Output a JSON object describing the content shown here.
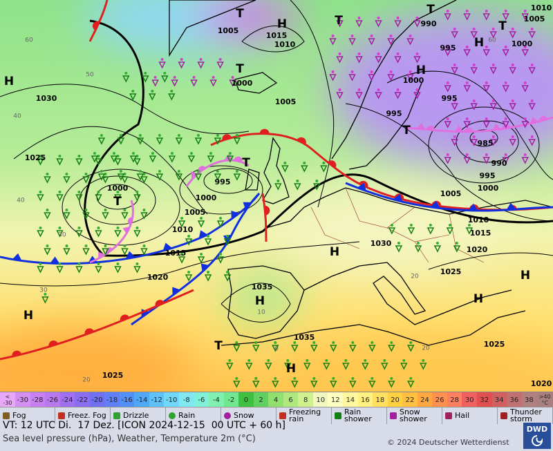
{
  "map": {
    "isobar_labels": [
      1005,
      1015,
      1010,
      990,
      1005,
      1010,
      1000,
      995,
      1000,
      1005,
      995,
      1000,
      995,
      985,
      990,
      995,
      1000,
      1030,
      1025,
      1000,
      995,
      1000,
      1005,
      1010,
      1015,
      1020,
      1030,
      1005,
      1010,
      1015,
      1020,
      1025,
      1035,
      1035,
      1025,
      1025,
      1020
    ],
    "pressure_centers": [
      "T",
      "H",
      "T",
      "T",
      "T",
      "H",
      "H",
      "T",
      "H",
      "T",
      "T",
      "T",
      "H",
      "H",
      "H",
      "H",
      "H",
      "T",
      "H"
    ],
    "grid_labels": [
      "60",
      "50",
      "40",
      "30",
      "20",
      "60",
      "0",
      "10",
      "20",
      "40",
      "30",
      "20"
    ]
  },
  "colorbar": {
    "low_label": "< -30",
    "high_label": ">40",
    "unit": "°C",
    "low_color": "#e8a8f8",
    "high_color": "#a88080",
    "steps": [
      -30,
      -28,
      -26,
      -24,
      -22,
      -20,
      -18,
      -16,
      -14,
      -12,
      -10,
      -8,
      -6,
      -4,
      -2,
      0,
      2,
      4,
      6,
      8,
      10,
      12,
      14,
      16,
      18,
      20,
      22,
      24,
      26,
      28,
      30,
      32,
      34,
      36,
      38
    ],
    "colors": [
      "#d490f0",
      "#c880f0",
      "#b878f0",
      "#a070f0",
      "#8c6cf0",
      "#7070f0",
      "#6080f8",
      "#5090f8",
      "#50a8f8",
      "#60c0f8",
      "#70d8f8",
      "#80e8f0",
      "#80f0d8",
      "#80f0b0",
      "#70e890",
      "#40c040",
      "#60d060",
      "#90e070",
      "#b0e880",
      "#d0f090",
      "#f0f8c0",
      "#ffffc0",
      "#fff8a0",
      "#fff080",
      "#ffe060",
      "#ffd040",
      "#ffc040",
      "#ffa840",
      "#ff9050",
      "#ff8060",
      "#f06060",
      "#e05050",
      "#d06060",
      "#c07070",
      "#b08080"
    ]
  },
  "legend": [
    "Fog",
    "Freez. Fog",
    "Drizzle",
    "Rain",
    "Snow",
    "Freezing rain",
    "Rain shower",
    "Snow shower",
    "Hail",
    "Thunder storm"
  ],
  "footer": {
    "valid_time": "VT: 12 UTC Di.  17 Dez. [ICON 2024-12-15  00 UTC + 60 h]",
    "description": "Sea level pressure (hPa), Weather, Temperature 2m (°C)",
    "copyright": "© 2024 Deutscher Wetterdienst",
    "logo": "DWD"
  }
}
